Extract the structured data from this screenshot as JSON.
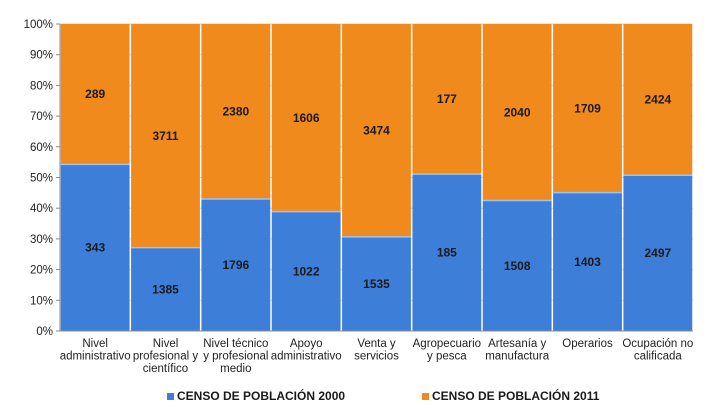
{
  "chart_data": {
    "type": "bar",
    "stacking": "percent",
    "categories": [
      [
        "Nivel",
        "administrativo"
      ],
      [
        "Nivel",
        "profesional y",
        "científico"
      ],
      [
        "Nivel técnico",
        "y profesional",
        "medio"
      ],
      [
        "Apoyo",
        "administrativo"
      ],
      [
        "Venta y",
        "servicios"
      ],
      [
        "Agropecuario",
        "y pesca"
      ],
      [
        "Artesanía y",
        "manufactura"
      ],
      [
        "Operarios"
      ],
      [
        "Ocupación no",
        "calificada"
      ]
    ],
    "series": [
      {
        "name": "CENSO DE POBLACIÓN 2000",
        "color": "#3d7fd8",
        "values": [
          343,
          1385,
          1796,
          1022,
          1535,
          185,
          1508,
          1403,
          2497
        ]
      },
      {
        "name": "CENSO DE POBLACIÓN 2011",
        "color": "#f08a1c",
        "values": [
          289,
          3711,
          2380,
          1606,
          3474,
          177,
          2040,
          1709,
          2424
        ]
      }
    ],
    "y_ticks": [
      "0%",
      "10%",
      "20%",
      "30%",
      "40%",
      "50%",
      "60%",
      "70%",
      "80%",
      "90%",
      "100%"
    ],
    "ylim": [
      0,
      100
    ],
    "grid": true,
    "legend_position": "bottom",
    "title": "",
    "xlabel": "",
    "ylabel": ""
  }
}
